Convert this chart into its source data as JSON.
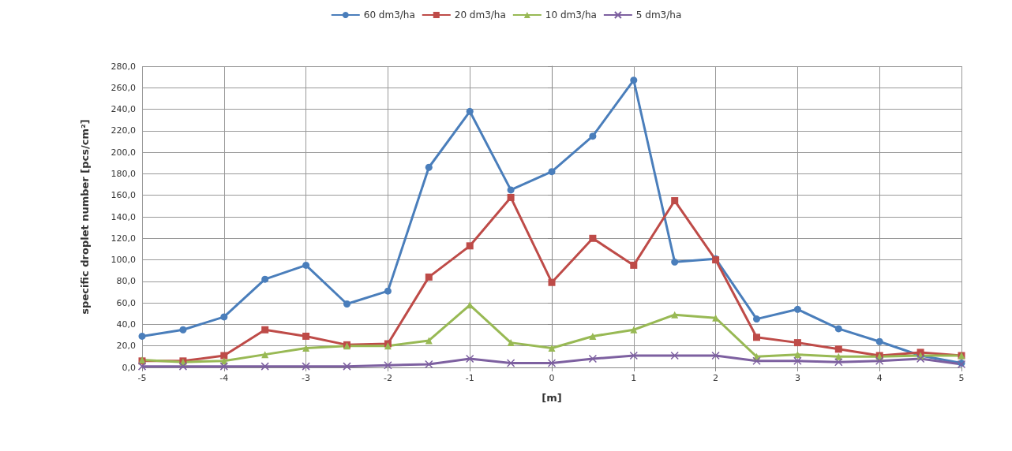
{
  "chart_data": {
    "type": "line",
    "xlabel": "[m]",
    "ylabel": "specific droplet number [pcs/cm²]",
    "x": [
      -5,
      -4.5,
      -4,
      -3.5,
      -3,
      -2.5,
      -2,
      -1.5,
      -1,
      -0.5,
      0,
      0.5,
      1,
      1.5,
      2,
      2.5,
      3,
      3.5,
      4,
      4.5,
      5
    ],
    "series": [
      {
        "name": "60 dm3/ha",
        "color": "#4a7ebb",
        "marker": "circle",
        "values": [
          29,
          35,
          47,
          82,
          95,
          59,
          71,
          186,
          238,
          165,
          182,
          215,
          267,
          98,
          101,
          45,
          54,
          36,
          24,
          11,
          4
        ]
      },
      {
        "name": "20 dm3/ha",
        "color": "#be4b48",
        "marker": "square",
        "values": [
          6,
          6,
          11,
          35,
          29,
          21,
          22,
          84,
          113,
          158,
          79,
          120,
          95,
          155,
          100,
          28,
          23,
          17,
          11,
          14,
          11
        ]
      },
      {
        "name": "10 dm3/ha",
        "color": "#98b954",
        "marker": "triangle",
        "values": [
          7,
          5,
          6,
          12,
          18,
          20,
          20,
          25,
          58,
          23,
          18,
          29,
          35,
          49,
          46,
          10,
          12,
          10,
          10,
          11,
          11
        ]
      },
      {
        "name": "5 dm3/ha",
        "color": "#7d60a0",
        "marker": "cross",
        "values": [
          1,
          1,
          1,
          1,
          1,
          1,
          2,
          3,
          8,
          4,
          4,
          8,
          11,
          11,
          11,
          6,
          6,
          5,
          6,
          8,
          3
        ]
      }
    ],
    "xlim": [
      -5,
      5
    ],
    "xticks": [
      -5,
      -4,
      -3,
      -2,
      -1,
      0,
      1,
      2,
      3,
      4,
      5
    ],
    "ylim": [
      0,
      280
    ],
    "yticks": [
      {
        "value": 0,
        "label": "0,0"
      },
      {
        "value": 20,
        "label": "20,0"
      },
      {
        "value": 40,
        "label": "40,0"
      },
      {
        "value": 60,
        "label": "60,0"
      },
      {
        "value": 80,
        "label": "80,0"
      },
      {
        "value": 100,
        "label": "100,0"
      },
      {
        "value": 120,
        "label": "120,0"
      },
      {
        "value": 140,
        "label": "140,0"
      },
      {
        "value": 160,
        "label": "160,0"
      },
      {
        "value": 180,
        "label": "180,0"
      },
      {
        "value": 200,
        "label": "200,0"
      },
      {
        "value": 220,
        "label": "220,0"
      },
      {
        "value": 240,
        "label": "240,0"
      },
      {
        "value": 260,
        "label": "260,0"
      },
      {
        "value": 280,
        "label": "280,0"
      }
    ],
    "grid": true,
    "legend": "top",
    "line_style": "solid"
  }
}
